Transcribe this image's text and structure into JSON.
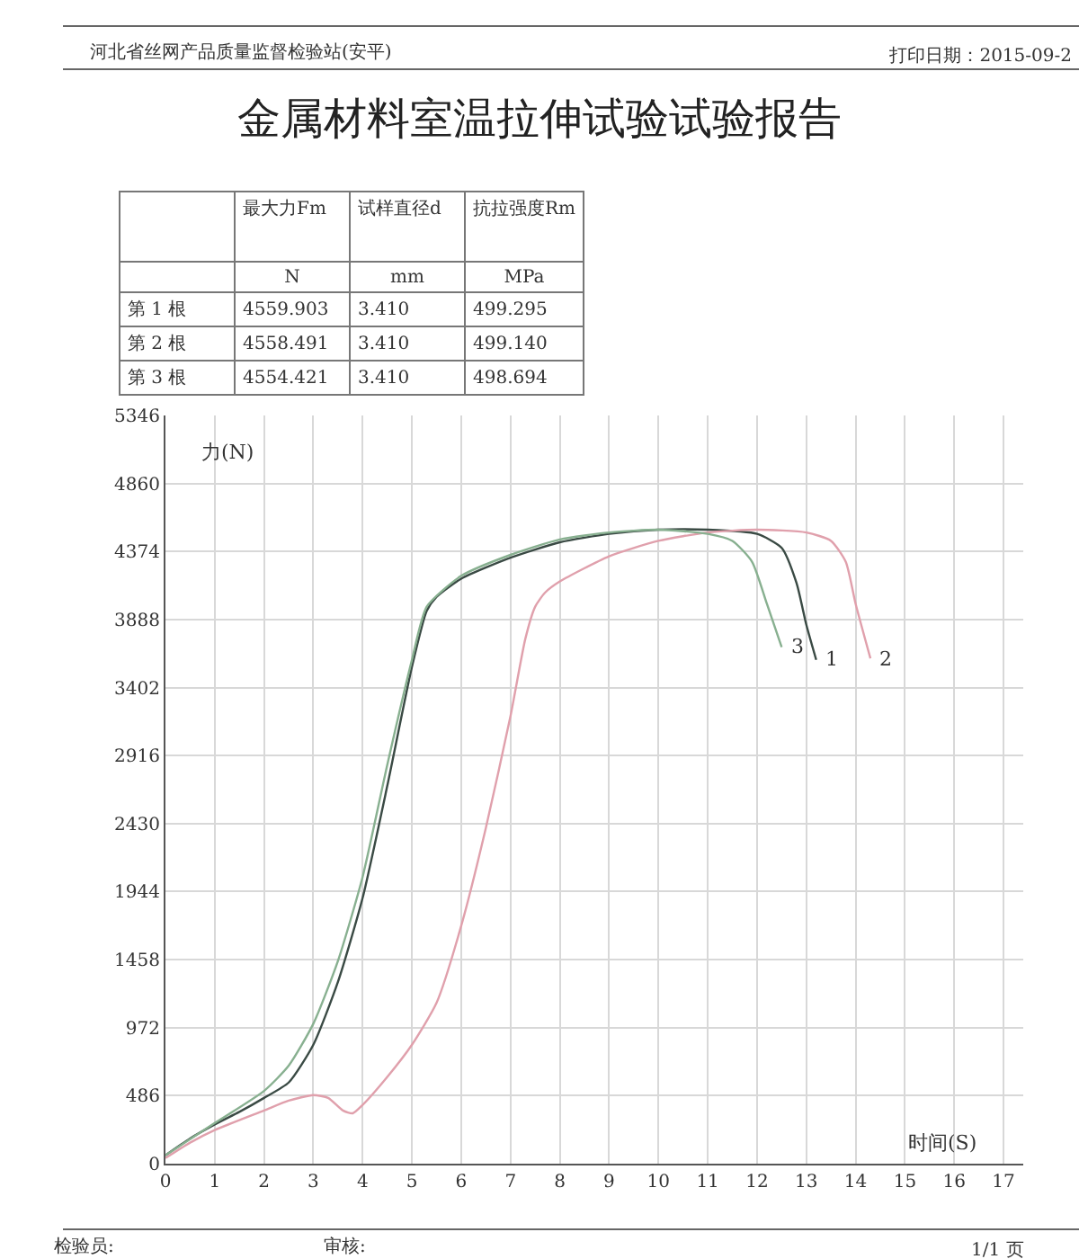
{
  "chart_data": {
    "type": "line",
    "title": "金属材料室温拉伸试验试验报告",
    "xlabel": "时间(S)",
    "ylabel": "力(N)",
    "xlim": [
      0,
      17.4
    ],
    "xticks": [
      0,
      1,
      2,
      3,
      4,
      5,
      6,
      7,
      8,
      9,
      10,
      11,
      12,
      13,
      14,
      15,
      16,
      17
    ],
    "ylim": [
      0,
      5346
    ],
    "yticks": [
      0,
      486,
      972,
      1458,
      1944,
      2430,
      2916,
      3402,
      3888,
      4374,
      4860,
      5346
    ],
    "grid": true,
    "legend": false,
    "marker": "none",
    "line_style": "solid",
    "series": [
      {
        "name": "1",
        "color": "#3a4a44",
        "x": [
          0,
          0.5,
          1,
          1.5,
          2,
          2.5,
          3,
          3.5,
          4,
          4.5,
          5,
          5.3,
          5.5,
          6,
          7,
          8,
          9,
          10,
          11,
          12,
          12.5,
          12.8,
          13,
          13.2
        ],
        "values": [
          60,
          180,
          280,
          370,
          470,
          580,
          850,
          1300,
          1900,
          2700,
          3550,
          3950,
          4050,
          4180,
          4330,
          4440,
          4500,
          4530,
          4530,
          4500,
          4400,
          4150,
          3850,
          3600
        ]
      },
      {
        "name": "2",
        "color": "#e0a0ac",
        "x": [
          0,
          0.5,
          1,
          2,
          2.5,
          3,
          3.3,
          3.6,
          3.8,
          4,
          4.5,
          5,
          5.5,
          6,
          6.5,
          7,
          7.3,
          7.5,
          7.7,
          8,
          9,
          10,
          11,
          12,
          13,
          13.5,
          13.8,
          14,
          14.3
        ],
        "values": [
          40,
          150,
          240,
          380,
          450,
          490,
          470,
          380,
          360,
          420,
          620,
          850,
          1150,
          1700,
          2400,
          3200,
          3750,
          3980,
          4080,
          4160,
          4340,
          4450,
          4510,
          4530,
          4510,
          4450,
          4300,
          4000,
          3610
        ]
      },
      {
        "name": "3",
        "color": "#88b090",
        "x": [
          0,
          1,
          2,
          2.5,
          3,
          3.5,
          4,
          4.5,
          5,
          5.3,
          6,
          7,
          8,
          9,
          10,
          11,
          11.5,
          11.9,
          12.2,
          12.5
        ],
        "values": [
          60,
          290,
          520,
          700,
          1000,
          1450,
          2050,
          2850,
          3600,
          3980,
          4200,
          4350,
          4460,
          4510,
          4530,
          4500,
          4450,
          4300,
          4000,
          3690
        ]
      }
    ],
    "annotations": [
      "河北省丝网产品质量监督检验站(安平)",
      "打印日期：2015-09-2",
      "最大力Fm",
      "试样直径d",
      "抗拉强度Rm",
      "N",
      "mm",
      "MPa",
      "第 1 根",
      "4559.903",
      "3.410",
      "499.295",
      "第 2 根",
      "4558.491",
      "3.410",
      "499.140",
      "第 3 根",
      "4554.421",
      "3.410",
      "498.694",
      "检验员:",
      "审核:",
      "1/1 页"
    ]
  }
}
